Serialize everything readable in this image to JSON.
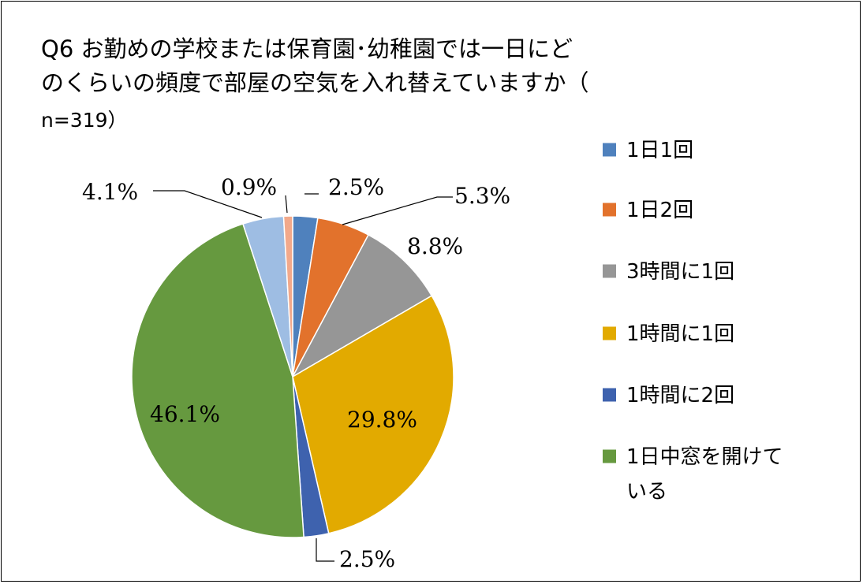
{
  "chart_data": {
    "type": "pie",
    "title_lines": [
      "Q6 お勤めの学校または保育園･幼稚園では一日にど",
      "のくらいの頻度で部屋の空気を入れ替えていますか（",
      "n=319）"
    ],
    "slices": [
      {
        "label": "1日1回",
        "value": 2.5,
        "value_label": "2.5%",
        "color": "#4F81BD"
      },
      {
        "label": "1日2回",
        "value": 5.3,
        "value_label": "5.3%",
        "color": "#E2722C"
      },
      {
        "label": "3時間に1回",
        "value": 8.8,
        "value_label": "8.8%",
        "color": "#969696"
      },
      {
        "label": "1時間に1回",
        "value": 29.8,
        "value_label": "29.8%",
        "color": "#E2AA00"
      },
      {
        "label": "1時間に2回",
        "value": 2.5,
        "value_label": "2.5%",
        "color": "#3E62AE"
      },
      {
        "label": "1日中窓を開けている",
        "legend_lines": [
          "1日中窓を開けて",
          "いる"
        ],
        "value": 46.1,
        "value_label": "46.1%",
        "color": "#66993F"
      },
      {
        "label": "",
        "value": 4.1,
        "value_label": "4.1%",
        "color": "#9EBDE3"
      },
      {
        "label": "",
        "value": 0.9,
        "value_label": "0.9%",
        "color": "#F2A98B"
      }
    ],
    "legend_position": "right"
  }
}
